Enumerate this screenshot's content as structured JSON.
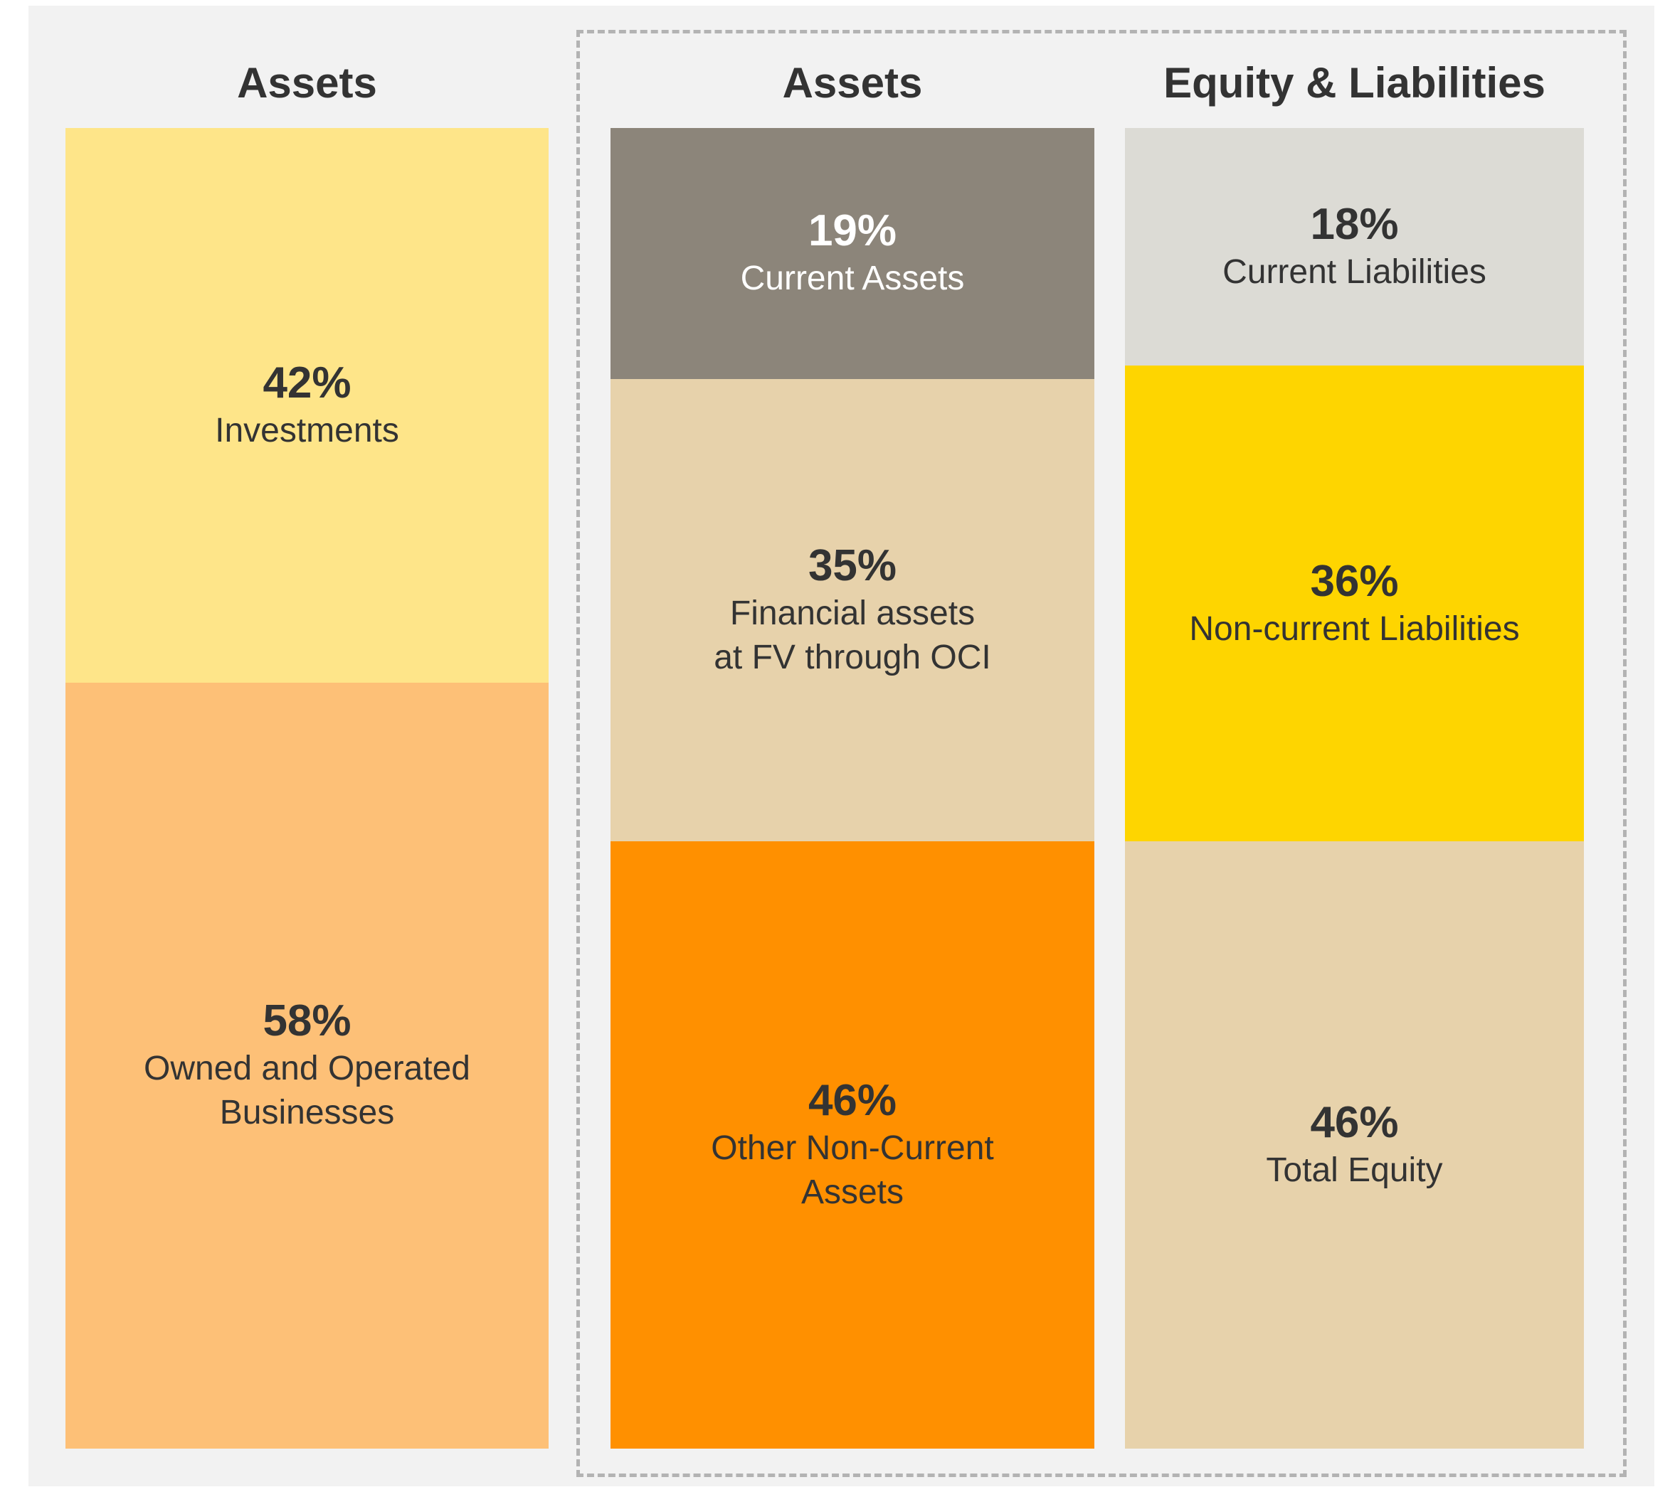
{
  "chart_data": [
    {
      "type": "stacked_column",
      "title": "Assets",
      "categories": [
        "Investments",
        "Owned and Operated\nBusinesses"
      ],
      "values": [
        42,
        58
      ],
      "value_labels": [
        "42%",
        "58%"
      ],
      "colors": [
        "#fee589",
        "#fdc077"
      ],
      "label_colors": [
        "#333333",
        "#333333"
      ]
    },
    {
      "type": "stacked_column",
      "title": "Assets",
      "categories": [
        "Current Assets",
        "Financial assets\nat FV through OCI",
        "Other Non-Current\nAssets"
      ],
      "values": [
        19,
        35,
        46
      ],
      "value_labels": [
        "19%",
        "35%",
        "46%"
      ],
      "colors": [
        "#8c857a",
        "#e7d2ab",
        "#ff9000"
      ],
      "label_colors": [
        "#ffffff",
        "#333333",
        "#333333"
      ]
    },
    {
      "type": "stacked_column",
      "title": "Equity & Liabilities",
      "categories": [
        "Current Liabilities",
        "Non-current Liabilities",
        "Total Equity"
      ],
      "values": [
        18,
        36,
        46
      ],
      "value_labels": [
        "18%",
        "36%",
        "46%"
      ],
      "colors": [
        "#dcdbd5",
        "#fed500",
        "#e7d2ab"
      ],
      "label_colors": [
        "#333333",
        "#333333",
        "#333333"
      ]
    }
  ]
}
